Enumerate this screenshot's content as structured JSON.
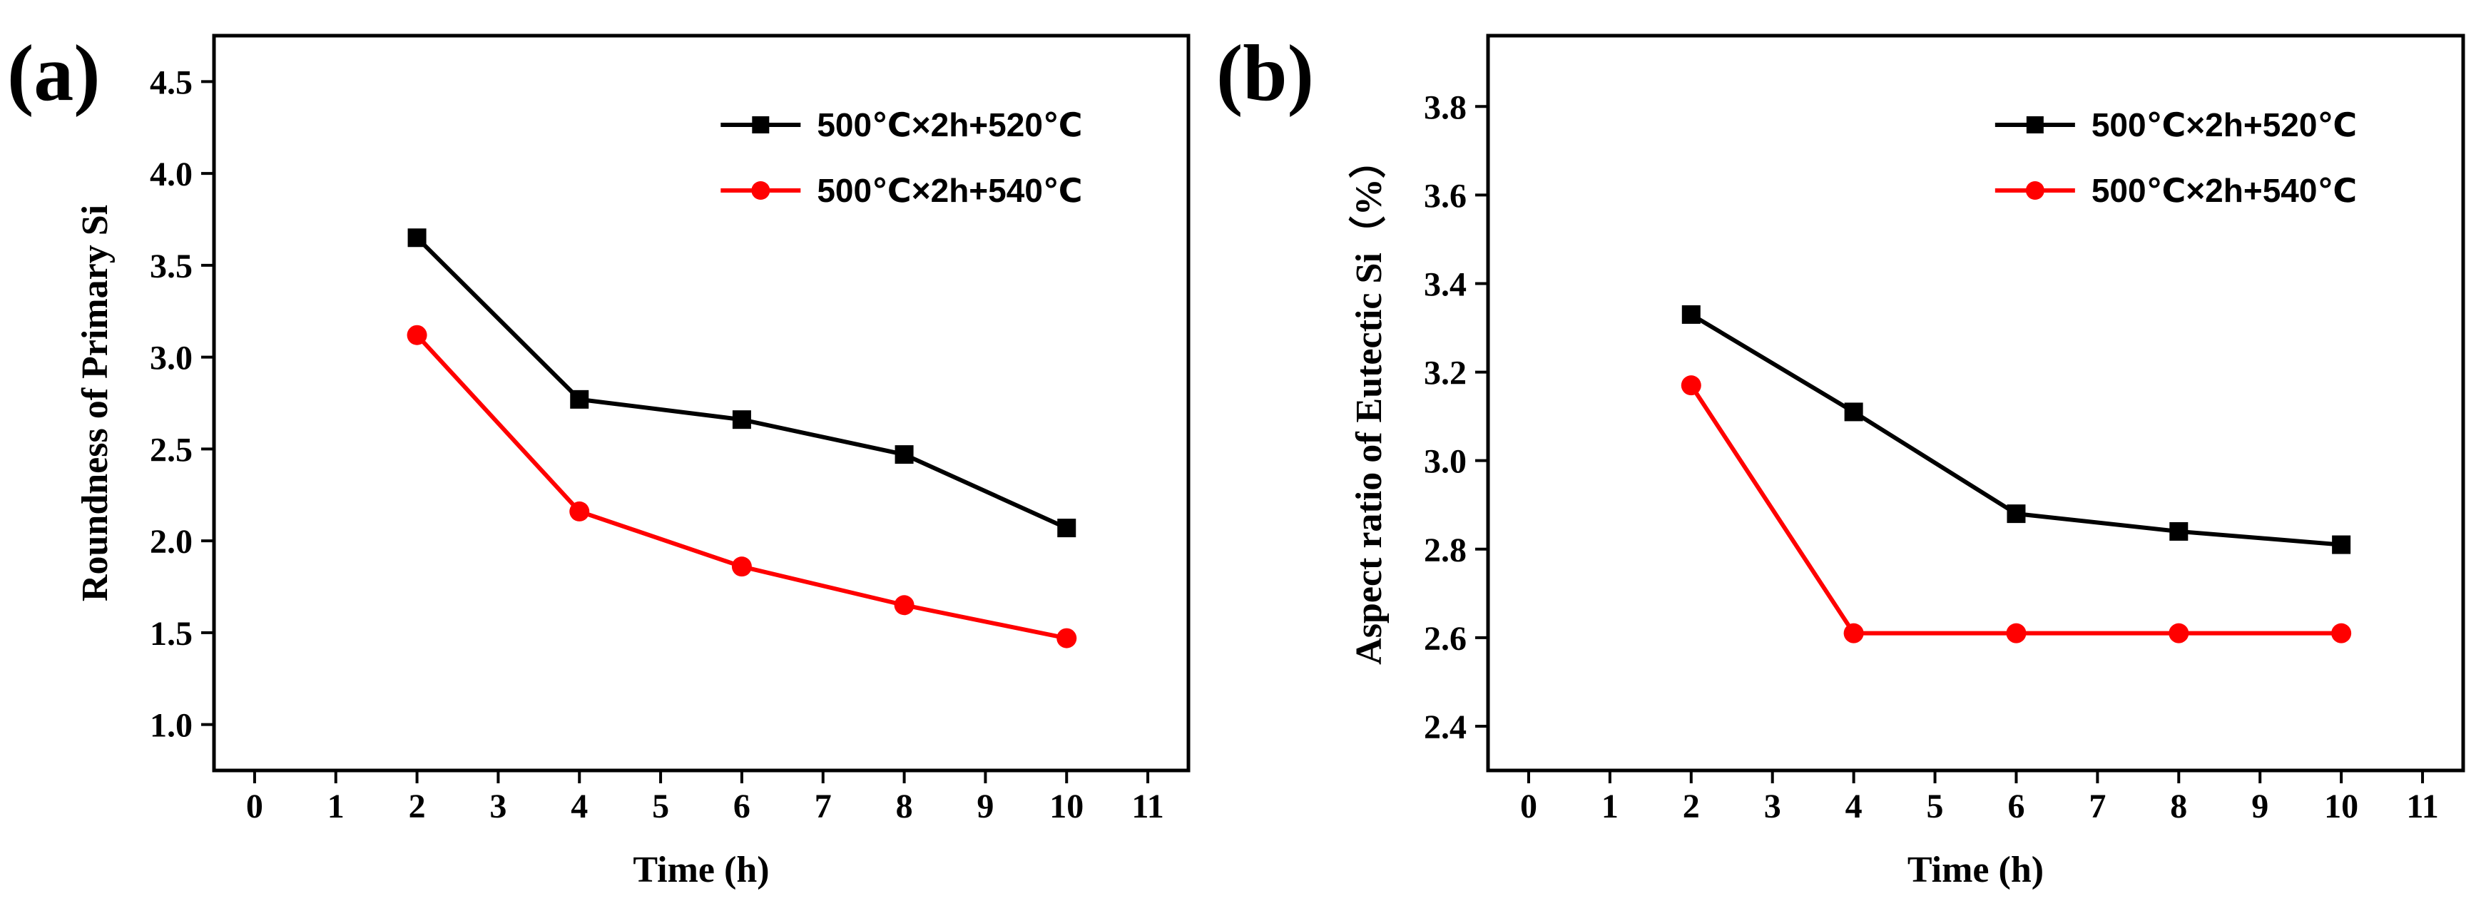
{
  "chart_data": [
    {
      "type": "line",
      "panel_label": "(a)",
      "title": "",
      "xlabel": "Time (h)",
      "ylabel": "Roundness of Primary Si",
      "xlim": [
        -0.5,
        11.5
      ],
      "ylim": [
        0.75,
        4.75
      ],
      "xticks": [
        0,
        1,
        2,
        3,
        4,
        5,
        6,
        7,
        8,
        9,
        10,
        11
      ],
      "xtick_labels": [
        "0",
        "1",
        "2",
        "3",
        "4",
        "5",
        "6",
        "7",
        "8",
        "9",
        "10",
        "11"
      ],
      "yticks": [
        1.0,
        1.5,
        2.0,
        2.5,
        3.0,
        3.5,
        4.0,
        4.5
      ],
      "ytick_labels": [
        "1.0",
        "1.5",
        "2.0",
        "2.5",
        "3.0",
        "3.5",
        "4.0",
        "4.5"
      ],
      "legend_position": "top-right",
      "series": [
        {
          "name": "500℃×2h+520℃",
          "color": "#000000",
          "marker": "square",
          "x": [
            2,
            4,
            6,
            8,
            10
          ],
          "values": [
            3.65,
            2.77,
            2.66,
            2.47,
            2.07
          ]
        },
        {
          "name": "500℃×2h+540℃",
          "color": "#ff0000",
          "marker": "circle",
          "x": [
            2,
            4,
            6,
            8,
            10
          ],
          "values": [
            3.12,
            2.16,
            1.86,
            1.65,
            1.47
          ]
        }
      ]
    },
    {
      "type": "line",
      "panel_label": "(b)",
      "title": "",
      "xlabel": "Time (h)",
      "ylabel": "Aspect ratio of Eutectic Si（%）",
      "xlim": [
        -0.5,
        11.5
      ],
      "ylim": [
        2.3,
        3.96
      ],
      "xticks": [
        0,
        1,
        2,
        3,
        4,
        5,
        6,
        7,
        8,
        9,
        10,
        11
      ],
      "xtick_labels": [
        "0",
        "1",
        "2",
        "3",
        "4",
        "5",
        "6",
        "7",
        "8",
        "9",
        "10",
        "11"
      ],
      "yticks": [
        2.4,
        2.6,
        2.8,
        3.0,
        3.2,
        3.4,
        3.6,
        3.8
      ],
      "ytick_labels": [
        "2.4",
        "2.6",
        "2.8",
        "3.0",
        "3.2",
        "3.4",
        "3.6",
        "3.8"
      ],
      "legend_position": "top-right",
      "series": [
        {
          "name": "500℃×2h+520℃",
          "color": "#000000",
          "marker": "square",
          "x": [
            2,
            4,
            6,
            8,
            10
          ],
          "values": [
            3.33,
            3.11,
            2.88,
            2.84,
            2.81
          ]
        },
        {
          "name": "500℃×2h+540℃",
          "color": "#ff0000",
          "marker": "circle",
          "x": [
            2,
            4,
            6,
            8,
            10
          ],
          "values": [
            3.17,
            2.61,
            2.61,
            2.61,
            2.61
          ]
        }
      ]
    }
  ]
}
